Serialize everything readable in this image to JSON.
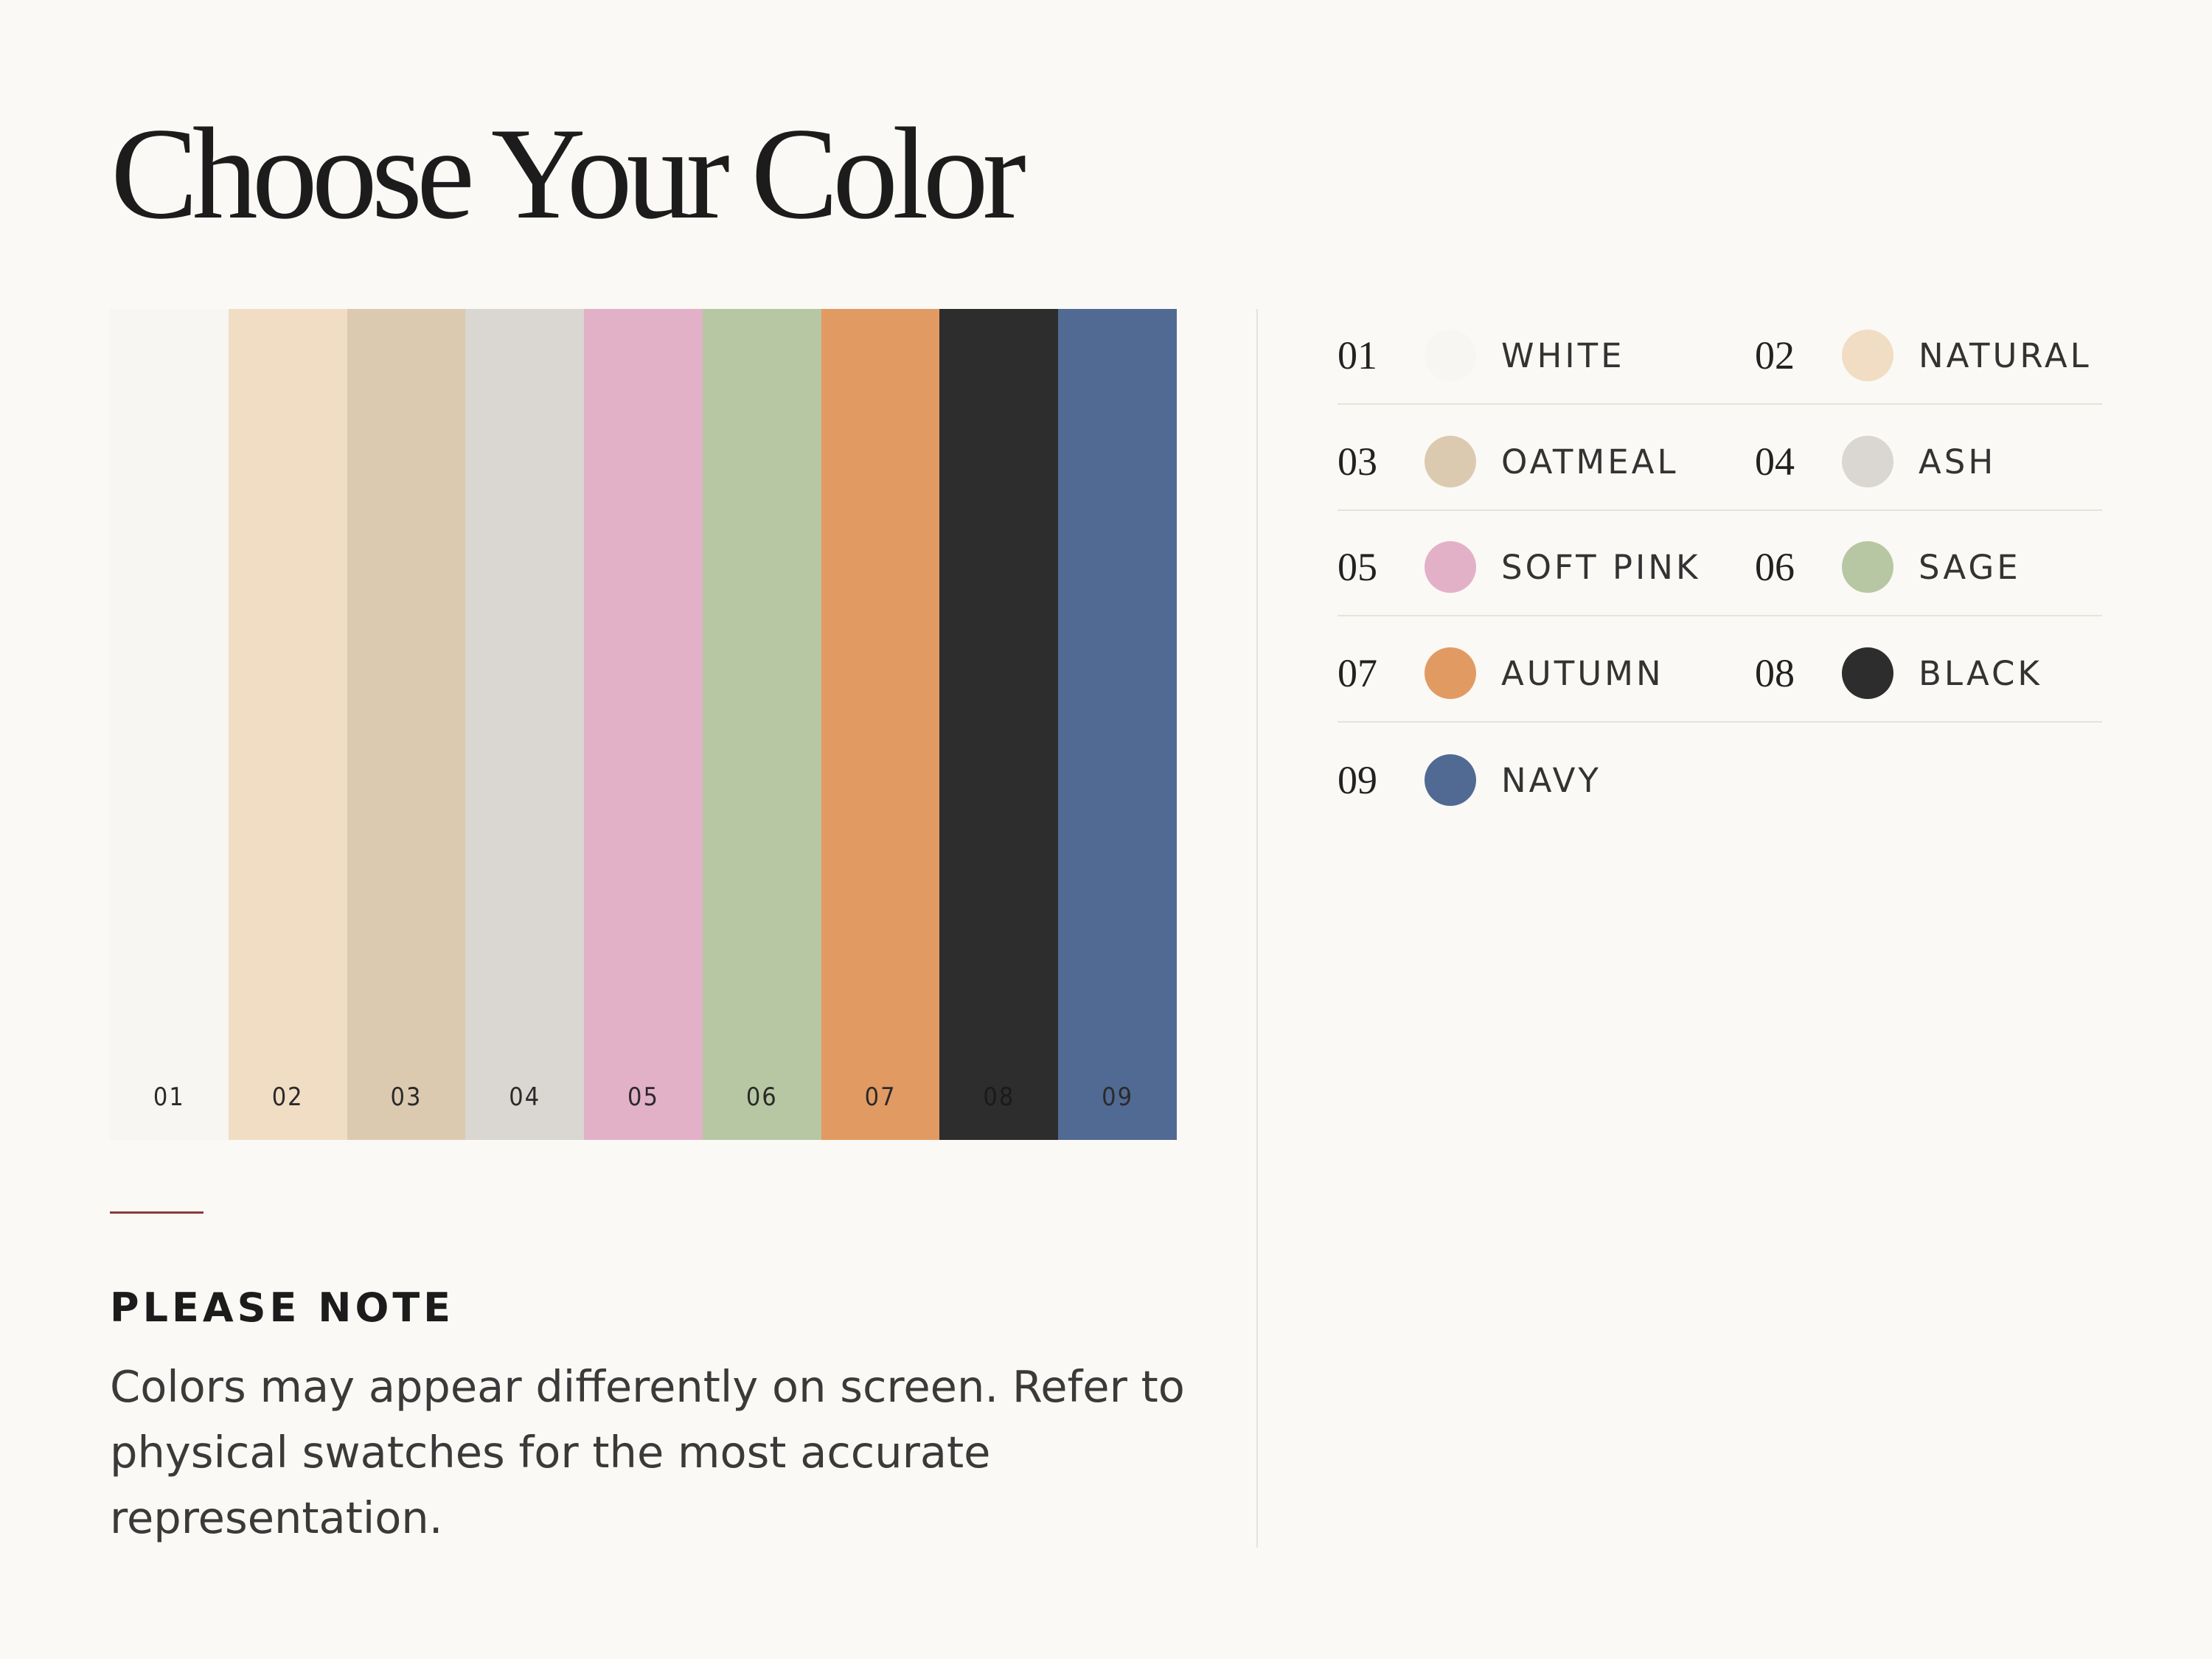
{
  "title": "Choose Your Color",
  "colors": [
    {
      "number": "01",
      "name": "WHITE",
      "color": "#f8f6f3"
    },
    {
      "number": "02",
      "name": "NATURAL",
      "color": "#f1ddc3"
    },
    {
      "number": "03",
      "name": "OATMEAL",
      "color": "#dccab0"
    },
    {
      "number": "04",
      "name": "ASH",
      "color": "#dad6d1"
    },
    {
      "number": "05",
      "name": "SOFT PINK",
      "color": "#e2b1c8"
    },
    {
      "number": "06",
      "name": "SAGE",
      "color": "#b8c7a3"
    },
    {
      "number": "07",
      "name": "AUTUMN",
      "color": "#e29a63"
    },
    {
      "number": "08",
      "name": "BLACK",
      "color": "#2e2d2e"
    },
    {
      "number": "09",
      "name": "NAVY",
      "color": "#516a94"
    }
  ],
  "note": {
    "heading": "PLEASE NOTE",
    "text": "Colors may appear differently on screen. Refer to physical swatches for the most accurate representation."
  }
}
